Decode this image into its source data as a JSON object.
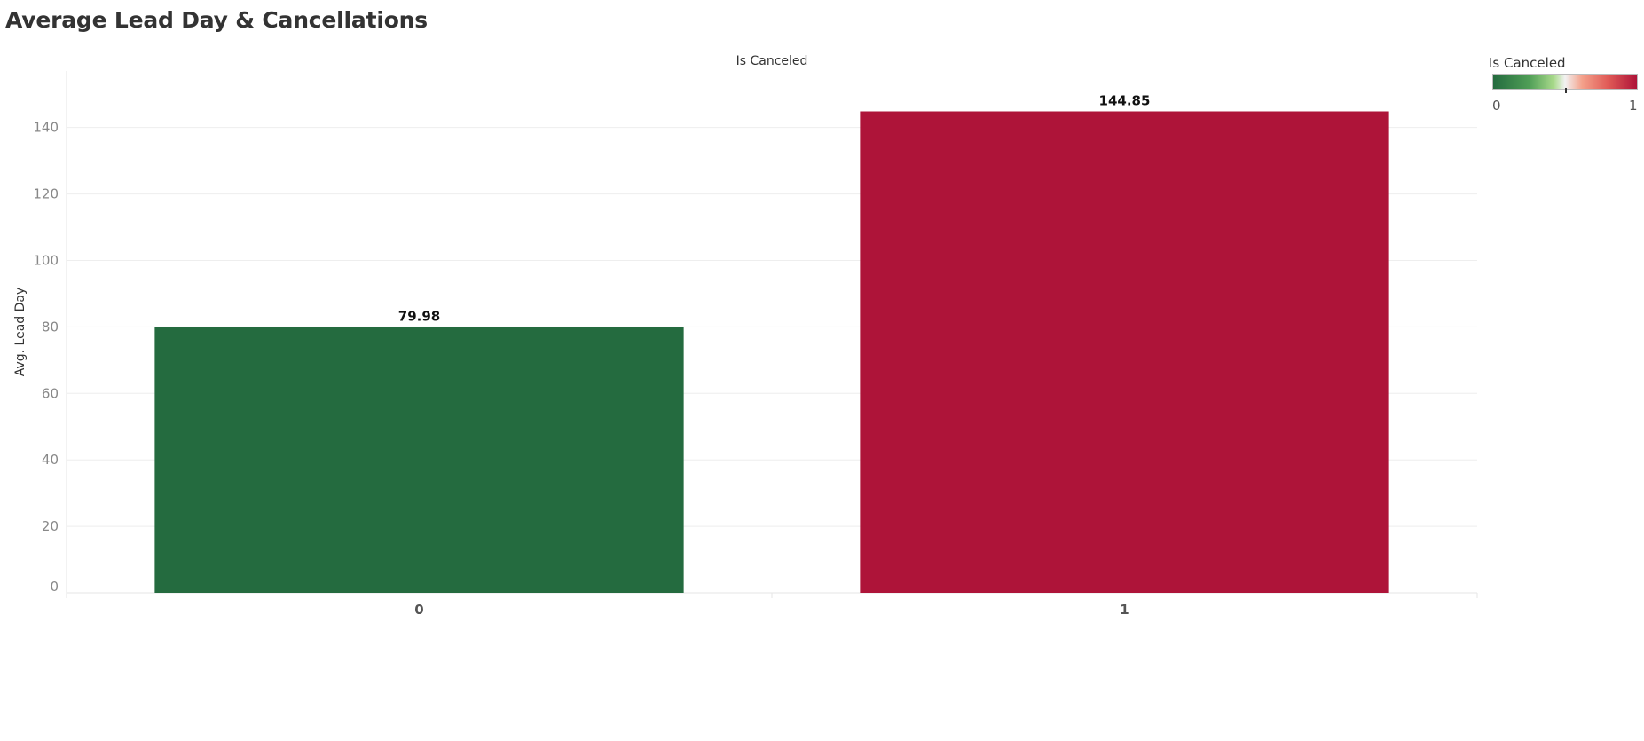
{
  "title": "Average Lead Day & Cancellations",
  "colors": {
    "low": "#246b3f",
    "mid": "#f2f2f2",
    "high": "#ae1439",
    "axis_text": "#888888",
    "gridline": "#eeeeee"
  },
  "legend": {
    "title": "Is Canceled",
    "min_label": "0",
    "max_label": "1"
  },
  "chart_data": {
    "type": "bar",
    "title": "Average Lead Day & Cancellations",
    "column_header": "Is Canceled",
    "xlabel": "",
    "ylabel": "Avg. Lead Day",
    "categories": [
      "0",
      "1"
    ],
    "values": [
      79.98,
      144.85
    ],
    "value_labels": [
      "79.98",
      "144.85"
    ],
    "bar_colors": [
      "#246b3f",
      "#ae1439"
    ],
    "ylim": [
      0,
      157
    ],
    "yticks": [
      0,
      20,
      40,
      60,
      80,
      100,
      120,
      140
    ],
    "grid": true,
    "legend_position": "top-right"
  }
}
